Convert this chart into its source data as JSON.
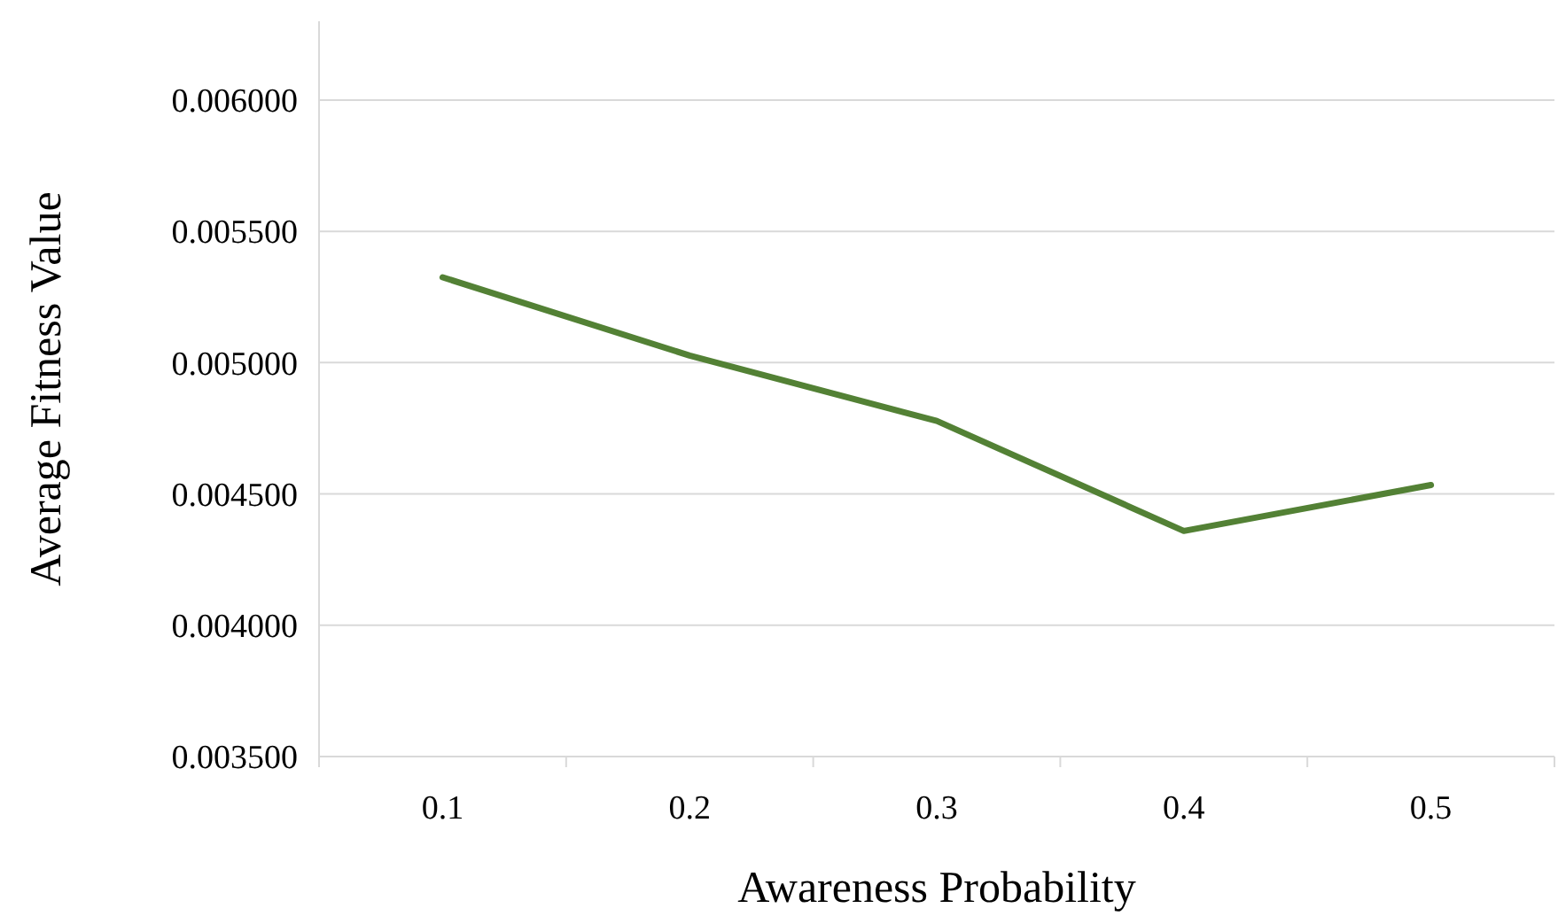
{
  "chart_data": {
    "type": "line",
    "xlabel": "Awareness Probability",
    "ylabel": "Average Fitness Value",
    "categories": [
      "0.1",
      "0.2",
      "0.3",
      "0.4",
      "0.5"
    ],
    "series": [
      {
        "color": "#538135",
        "values": [
          0.005325,
          0.005027,
          0.004778,
          0.004359,
          0.004534
        ]
      }
    ],
    "ylim": [
      0.0035,
      0.0063
    ],
    "yticks": [
      {
        "value": 0.0035,
        "label": "0.003500"
      },
      {
        "value": 0.004,
        "label": "0.004000"
      },
      {
        "value": 0.0045,
        "label": "0.004500"
      },
      {
        "value": 0.005,
        "label": "0.005000"
      },
      {
        "value": 0.0055,
        "label": "0.005500"
      },
      {
        "value": 0.006,
        "label": "0.006000"
      }
    ],
    "grid": "y",
    "marker": "none",
    "line_style": "solid"
  }
}
